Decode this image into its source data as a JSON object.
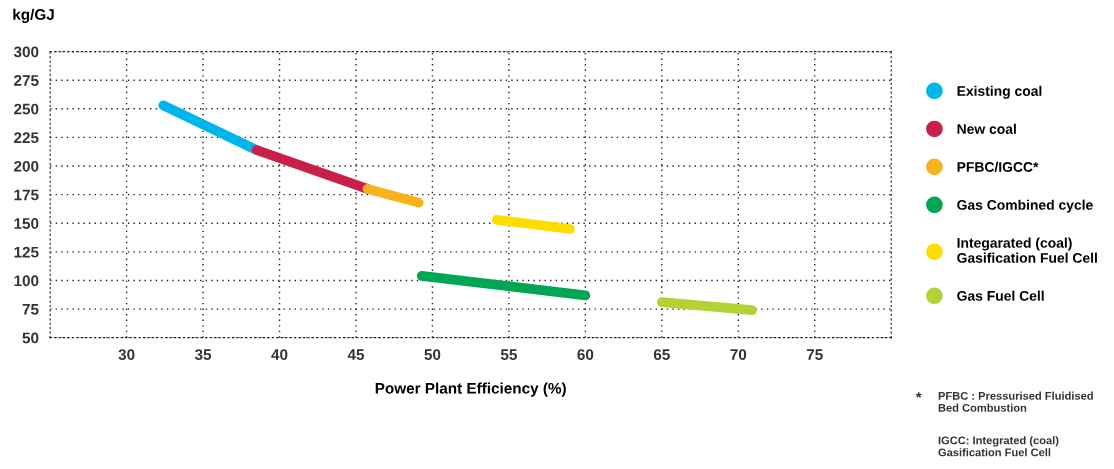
{
  "chart_data": {
    "type": "line",
    "xlabel": "Power Plant Efficiency (%)",
    "ylabel": "kg/GJ",
    "series": [
      {
        "name": "Existing coal",
        "color": "#00b5e9",
        "x": [
          32.4,
          38.5
        ],
        "values": [
          253,
          214
        ]
      },
      {
        "name": "New coal",
        "color": "#c8204a",
        "x": [
          38.5,
          45.75
        ],
        "values": [
          214,
          180
        ]
      },
      {
        "name": "PFBC/IGCC*",
        "color": "#f9b21b",
        "x": [
          45.75,
          49.1
        ],
        "values": [
          180,
          168
        ]
      },
      {
        "name": "Gas Combined cycle",
        "color": "#00a651",
        "x": [
          49.3,
          60
        ],
        "values": [
          104,
          87
        ]
      },
      {
        "name": "Integarated (coal)\nGasification Fuel Cell",
        "color": "#ffdd00",
        "x": [
          54.2,
          59
        ],
        "values": [
          153,
          145
        ]
      },
      {
        "name": "Gas Fuel Cell",
        "color": "#b2d235",
        "x": [
          65,
          70.9
        ],
        "values": [
          81,
          74
        ]
      }
    ],
    "xlim": [
      25,
      80
    ],
    "xticks": [
      30,
      35,
      40,
      45,
      50,
      55,
      60,
      65,
      70,
      75
    ],
    "ylim": [
      50,
      300
    ],
    "yticks": [
      50,
      75,
      100,
      125,
      150,
      175,
      200,
      225,
      250,
      275,
      300
    ],
    "grid": true,
    "legend": "right",
    "marker": "none",
    "line_style": "solid",
    "annotations": [
      "*",
      "PFBC : Pressurised Fluidised\nBed Combustion",
      "IGCC: Integrated (coal)\nGasification Fuel Cell"
    ]
  }
}
